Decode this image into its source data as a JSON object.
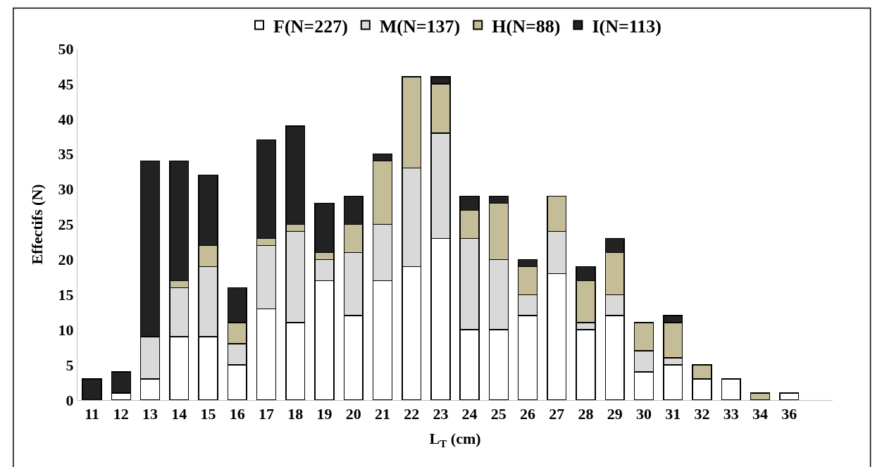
{
  "chart_data": {
    "type": "bar",
    "stacked": true,
    "xlabel": "L$_{T}$ (cm)",
    "ylabel": "Effectifs (N)",
    "categories": [
      "11",
      "12",
      "13",
      "14",
      "15",
      "16",
      "17",
      "18",
      "19",
      "20",
      "21",
      "22",
      "23",
      "24",
      "25",
      "26",
      "27",
      "28",
      "29",
      "30",
      "31",
      "32",
      "33",
      "34",
      "36"
    ],
    "series": [
      {
        "name": "F(N=227)",
        "color": "#ffffff",
        "values": [
          0,
          1,
          3,
          9,
          9,
          5,
          13,
          11,
          17,
          12,
          17,
          19,
          23,
          10,
          10,
          12,
          18,
          10,
          12,
          4,
          5,
          3,
          3,
          0,
          1
        ]
      },
      {
        "name": "M(N=137)",
        "color": "#d9d9d9",
        "values": [
          0,
          0,
          6,
          7,
          10,
          3,
          9,
          13,
          3,
          9,
          8,
          14,
          15,
          13,
          10,
          3,
          6,
          1,
          3,
          3,
          1,
          0,
          0,
          0,
          0
        ]
      },
      {
        "name": "H(N=88)",
        "color": "#c4bd97",
        "values": [
          0,
          0,
          0,
          1,
          3,
          3,
          1,
          1,
          1,
          4,
          9,
          13,
          7,
          4,
          8,
          4,
          5,
          6,
          6,
          4,
          5,
          2,
          0,
          1,
          0
        ]
      },
      {
        "name": "I(N=113)",
        "color": "#222222",
        "values": [
          3,
          3,
          25,
          17,
          10,
          5,
          14,
          14,
          7,
          4,
          1,
          0,
          1,
          2,
          1,
          1,
          0,
          2,
          2,
          0,
          1,
          0,
          0,
          0,
          0
        ]
      }
    ],
    "ylim": [
      0,
      50
    ],
    "yticks": [
      0,
      5,
      10,
      15,
      20,
      25,
      30,
      35,
      40,
      45,
      50
    ],
    "legend": "top"
  }
}
